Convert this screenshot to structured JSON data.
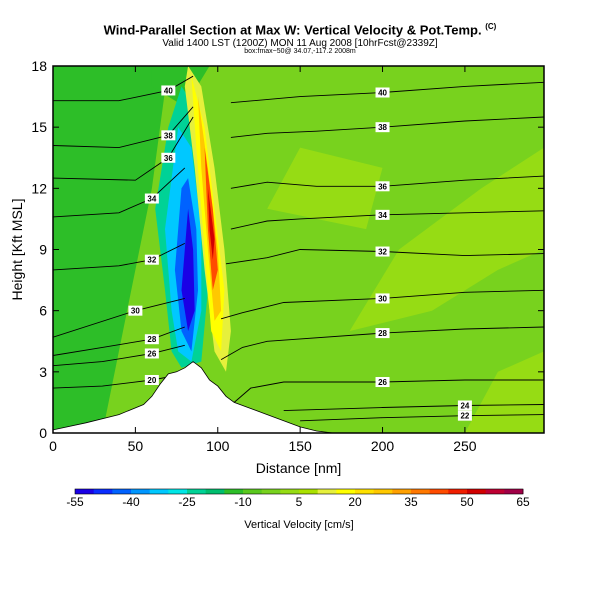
{
  "header": {
    "title": "Wind-Parallel Section at Max W: Vertical Velocity & Pot.Temp.",
    "title_mark": "(C)",
    "subtitle": "Valid 1400 LST (1200Z) MON 11 Aug 2008 [10hrFcst@2339Z]",
    "credit": "box:fmax~50@ 34.07,-117.2 2008m"
  },
  "chart_data": {
    "type": "heatmap",
    "xlabel": "Distance [nm]",
    "ylabel": "Height [Kft MSL]",
    "xlim": [
      0,
      298
    ],
    "ylim": [
      0,
      18
    ],
    "x_ticks": [
      0,
      50,
      100,
      150,
      200,
      250
    ],
    "y_ticks": [
      0,
      3,
      6,
      9,
      12,
      15,
      18
    ],
    "fill_variable": "Vertical Velocity [cm/s]",
    "colorbar": {
      "title": "Vertical Velocity [cm/s]",
      "tick_labels": [
        "-55",
        "-40",
        "-25",
        "-10",
        "5",
        "20",
        "35",
        "50",
        "65"
      ],
      "tick_values": [
        -55,
        -40,
        -25,
        -10,
        5,
        20,
        35,
        50,
        65
      ],
      "min": -55,
      "max": 65,
      "step": 5,
      "colors": [
        "#1a00e6",
        "#0a2dff",
        "#0062ff",
        "#0096ff",
        "#00c8ff",
        "#00e6e6",
        "#00d296",
        "#00be6e",
        "#2dbe28",
        "#5ac81e",
        "#78d21e",
        "#96dc14",
        "#aae100",
        "#e6f03c",
        "#ffff00",
        "#ffe100",
        "#ffc800",
        "#ffa000",
        "#ff7800",
        "#ff4b00",
        "#f01e00",
        "#d20000",
        "#be0032",
        "#a00046"
      ]
    },
    "contour_variable": "Potential Temperature [C]",
    "contours": [
      {
        "label": "20",
        "points": [
          [
            0,
            2.2
          ],
          [
            30,
            2.3
          ],
          [
            60,
            2.6
          ],
          [
            80,
            2.9
          ]
        ]
      },
      {
        "label": "22",
        "points": [
          [
            150,
            0.6
          ],
          [
            200,
            0.75
          ],
          [
            250,
            0.85
          ],
          [
            298,
            0.9
          ]
        ]
      },
      {
        "label": "24",
        "points": [
          [
            140,
            1.1
          ],
          [
            200,
            1.25
          ],
          [
            250,
            1.35
          ],
          [
            298,
            1.4
          ]
        ]
      },
      {
        "label": "26",
        "points": [
          [
            0,
            3.3
          ],
          [
            30,
            3.5
          ],
          [
            60,
            3.9
          ],
          [
            80,
            4.3
          ]
        ]
      },
      {
        "label": "26",
        "points": [
          [
            110,
            1.5
          ],
          [
            120,
            2.2
          ],
          [
            140,
            2.5
          ],
          [
            200,
            2.5
          ],
          [
            250,
            2.6
          ],
          [
            298,
            2.6
          ]
        ]
      },
      {
        "label": "28",
        "points": [
          [
            0,
            3.8
          ],
          [
            30,
            4.2
          ],
          [
            60,
            4.6
          ],
          [
            80,
            5.2
          ]
        ]
      },
      {
        "label": "28",
        "points": [
          [
            102,
            3.6
          ],
          [
            115,
            4.2
          ],
          [
            130,
            4.5
          ],
          [
            200,
            4.9
          ],
          [
            250,
            5.1
          ],
          [
            298,
            5.2
          ]
        ]
      },
      {
        "label": "30",
        "points": [
          [
            0,
            4.7
          ],
          [
            50,
            6.0
          ],
          [
            80,
            6.6
          ]
        ]
      },
      {
        "label": "30",
        "points": [
          [
            102,
            5.6
          ],
          [
            115,
            5.9
          ],
          [
            140,
            6.4
          ],
          [
            200,
            6.6
          ],
          [
            250,
            6.9
          ],
          [
            298,
            7.0
          ]
        ]
      },
      {
        "label": "32",
        "points": [
          [
            0,
            8.0
          ],
          [
            40,
            8.2
          ],
          [
            60,
            8.5
          ],
          [
            80,
            9.3
          ]
        ]
      },
      {
        "label": "32",
        "points": [
          [
            105,
            8.3
          ],
          [
            130,
            8.6
          ],
          [
            150,
            9.0
          ],
          [
            200,
            8.9
          ],
          [
            250,
            8.7
          ],
          [
            298,
            8.8
          ]
        ]
      },
      {
        "label": "34",
        "points": [
          [
            0,
            10.6
          ],
          [
            40,
            10.8
          ],
          [
            60,
            11.5
          ],
          [
            80,
            13.0
          ]
        ]
      },
      {
        "label": "34",
        "points": [
          [
            108,
            10.0
          ],
          [
            130,
            10.4
          ],
          [
            150,
            10.5
          ],
          [
            200,
            10.7
          ],
          [
            250,
            10.8
          ],
          [
            298,
            10.9
          ]
        ]
      },
      {
        "label": "36",
        "points": [
          [
            0,
            12.5
          ],
          [
            50,
            12.4
          ],
          [
            70,
            13.5
          ],
          [
            85,
            15.5
          ]
        ]
      },
      {
        "label": "36",
        "points": [
          [
            108,
            12.0
          ],
          [
            130,
            12.3
          ],
          [
            160,
            12.1
          ],
          [
            200,
            12.1
          ],
          [
            250,
            12.4
          ],
          [
            298,
            12.6
          ]
        ]
      },
      {
        "label": "38",
        "points": [
          [
            0,
            14.1
          ],
          [
            40,
            14.0
          ],
          [
            70,
            14.6
          ],
          [
            85,
            16.0
          ]
        ]
      },
      {
        "label": "38",
        "points": [
          [
            108,
            14.5
          ],
          [
            130,
            14.7
          ],
          [
            160,
            14.8
          ],
          [
            200,
            15.0
          ],
          [
            250,
            15.3
          ],
          [
            298,
            15.5
          ]
        ]
      },
      {
        "label": "40",
        "points": [
          [
            0,
            16.3
          ],
          [
            40,
            16.3
          ],
          [
            70,
            16.8
          ],
          [
            85,
            17.5
          ]
        ]
      },
      {
        "label": "40",
        "points": [
          [
            108,
            16.2
          ],
          [
            150,
            16.5
          ],
          [
            200,
            16.7
          ],
          [
            250,
            17.0
          ],
          [
            298,
            17.2
          ]
        ]
      }
    ],
    "updraft_core": {
      "peak_cm_s": 65,
      "height_range_kft": [
        3.5,
        17.5
      ],
      "x_range_nm": [
        82,
        108
      ]
    },
    "downdraft_core": {
      "min_cm_s": -55,
      "height_range_kft": [
        3.2,
        12.5
      ],
      "x_range_nm": [
        72,
        92
      ]
    },
    "terrain_kft": [
      [
        0,
        0.15
      ],
      [
        20,
        0.5
      ],
      [
        40,
        0.9
      ],
      [
        55,
        1.4
      ],
      [
        60,
        1.8
      ],
      [
        65,
        2.4
      ],
      [
        70,
        2.9
      ],
      [
        75,
        3.0
      ],
      [
        80,
        3.2
      ],
      [
        85,
        3.5
      ],
      [
        90,
        3.2
      ],
      [
        95,
        2.6
      ],
      [
        100,
        2.3
      ],
      [
        105,
        1.8
      ],
      [
        110,
        1.5
      ],
      [
        120,
        1.2
      ],
      [
        130,
        0.9
      ],
      [
        140,
        0.6
      ],
      [
        150,
        0.3
      ],
      [
        160,
        0.1
      ],
      [
        170,
        0.0
      ],
      [
        298,
        0.0
      ]
    ]
  }
}
